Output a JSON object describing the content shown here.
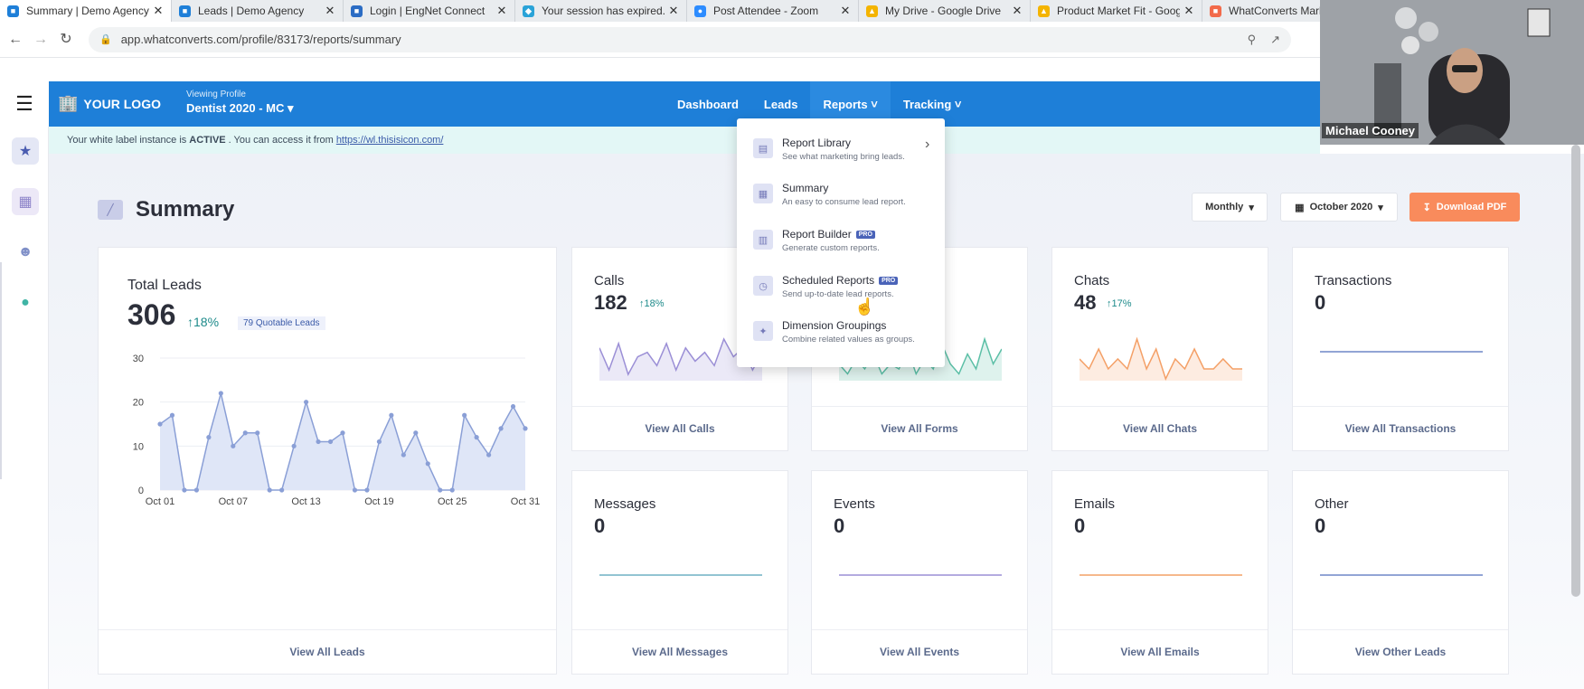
{
  "browser": {
    "tabs": [
      {
        "title": "Summary | Demo Agency",
        "color": "#1e7fd8",
        "glyph": "■",
        "active": true
      },
      {
        "title": "Leads | Demo Agency",
        "color": "#1e7fd8",
        "glyph": "■",
        "active": false
      },
      {
        "title": "Login | EngNet Connect",
        "color": "#2b6cc4",
        "glyph": "■",
        "active": false
      },
      {
        "title": "Your session has expired.",
        "color": "#2aa3d8",
        "glyph": "◆",
        "active": false
      },
      {
        "title": "Post Attendee - Zoom",
        "color": "#2d8cff",
        "glyph": "●",
        "active": false
      },
      {
        "title": "My Drive - Google Drive",
        "color": "#f4b400",
        "glyph": "▲",
        "active": false
      },
      {
        "title": "Product Market Fit - Goog",
        "color": "#f4b400",
        "glyph": "▲",
        "active": false
      },
      {
        "title": "WhatConverts Marketi",
        "color": "#f26a4a",
        "glyph": "■",
        "active": false
      }
    ],
    "url": "app.whatconverts.com/profile/83173/reports/summary"
  },
  "header": {
    "logo_text": "YOUR LOGO",
    "viewing_label": "Viewing Profile",
    "profile_name": "Dentist 2020 - MC ▾",
    "nav": [
      {
        "label": "Dashboard"
      },
      {
        "label": "Leads"
      },
      {
        "label": "Reports ˅"
      },
      {
        "label": "Tracking ˅"
      }
    ]
  },
  "banner": {
    "text_before": "Your white label instance is",
    "status": "ACTIVE",
    "text_after": ". You can access it from",
    "link": "https://wl.thisisicon.com/"
  },
  "page": {
    "title": "Summary",
    "period_select": "Monthly",
    "date_select": "October 2020",
    "download_label": "Download PDF"
  },
  "reports_menu": [
    {
      "title": "Report Library",
      "desc": "See what marketing bring leads.",
      "pro": false,
      "arrow": true
    },
    {
      "title": "Summary",
      "desc": "An easy to consume lead report.",
      "pro": false,
      "arrow": false
    },
    {
      "title": "Report Builder",
      "desc": "Generate custom reports.",
      "pro": true,
      "arrow": false
    },
    {
      "title": "Scheduled Reports",
      "desc": "Send up-to-date lead reports.",
      "pro": true,
      "arrow": false
    },
    {
      "title": "Dimension Groupings",
      "desc": "Combine related values as groups.",
      "pro": false,
      "arrow": false
    }
  ],
  "pro_badge": "PRO",
  "total_leads": {
    "label": "Total Leads",
    "value": "306",
    "change": "↑18%",
    "quotable": "79 Quotable Leads",
    "footer": "View All Leads"
  },
  "metric_cards": [
    {
      "label": "Calls",
      "value": "182",
      "change": "↑18%",
      "footer": "View All Calls",
      "color": "#9b8fd6",
      "values": [
        7,
        2,
        8,
        1,
        5,
        6,
        3,
        8,
        2,
        7,
        4,
        6,
        3,
        9,
        5,
        7,
        2,
        6
      ]
    },
    {
      "label": "Forms",
      "value": "",
      "change": "",
      "footer": "View All Forms",
      "color": "#5bbfa6",
      "values": [
        3,
        1,
        4,
        2,
        5,
        1,
        3,
        2,
        6,
        1,
        4,
        2,
        7,
        3,
        1,
        5,
        2,
        8,
        3,
        6
      ]
    },
    {
      "label": "Chats",
      "value": "48",
      "change": "↑17%",
      "footer": "View All Chats",
      "color": "#f4a067",
      "values": [
        2,
        1,
        3,
        1,
        2,
        1,
        4,
        1,
        3,
        0,
        2,
        1,
        3,
        1,
        1,
        2,
        1,
        1
      ]
    },
    {
      "label": "Transactions",
      "value": "0",
      "change": "",
      "footer": "View All Transactions",
      "color": "#6f87c7",
      "values": [
        0,
        0
      ]
    },
    {
      "label": "Messages",
      "value": "0",
      "change": "",
      "footer": "View All Messages",
      "color": "#6fb0c4",
      "values": [
        0,
        0
      ]
    },
    {
      "label": "Events",
      "value": "0",
      "change": "",
      "footer": "View All Events",
      "color": "#9b8fd6",
      "values": [
        0,
        0
      ]
    },
    {
      "label": "Emails",
      "value": "0",
      "change": "",
      "footer": "View All Emails",
      "color": "#f4a067",
      "values": [
        0,
        0
      ]
    },
    {
      "label": "Other",
      "value": "0",
      "change": "",
      "footer": "View Other Leads",
      "color": "#6f87c7",
      "values": [
        0,
        0
      ]
    }
  ],
  "chart_data": {
    "type": "area",
    "title": "",
    "xlabel": "",
    "ylabel": "",
    "x": [
      "Oct 01",
      "Oct 02",
      "Oct 03",
      "Oct 04",
      "Oct 05",
      "Oct 06",
      "Oct 07",
      "Oct 08",
      "Oct 09",
      "Oct 10",
      "Oct 11",
      "Oct 12",
      "Oct 13",
      "Oct 14",
      "Oct 15",
      "Oct 16",
      "Oct 17",
      "Oct 18",
      "Oct 19",
      "Oct 20",
      "Oct 21",
      "Oct 22",
      "Oct 23",
      "Oct 24",
      "Oct 25",
      "Oct 26",
      "Oct 27",
      "Oct 28",
      "Oct 29",
      "Oct 30",
      "Oct 31"
    ],
    "xticks": [
      "Oct 01",
      "Oct 07",
      "Oct 13",
      "Oct 19",
      "Oct 25",
      "Oct 31"
    ],
    "values": [
      15,
      17,
      0,
      0,
      12,
      22,
      10,
      13,
      13,
      0,
      0,
      10,
      20,
      11,
      11,
      13,
      0,
      0,
      11,
      17,
      8,
      13,
      6,
      0,
      0,
      17,
      12,
      8,
      14,
      19,
      14
    ],
    "ylim": [
      0,
      30
    ],
    "yticks": [
      0,
      10,
      20,
      30
    ],
    "color": "#8a9fd6",
    "fill": "#dfe6f7",
    "grid": true
  },
  "video_overlay": {
    "name": "Michael Cooney"
  }
}
